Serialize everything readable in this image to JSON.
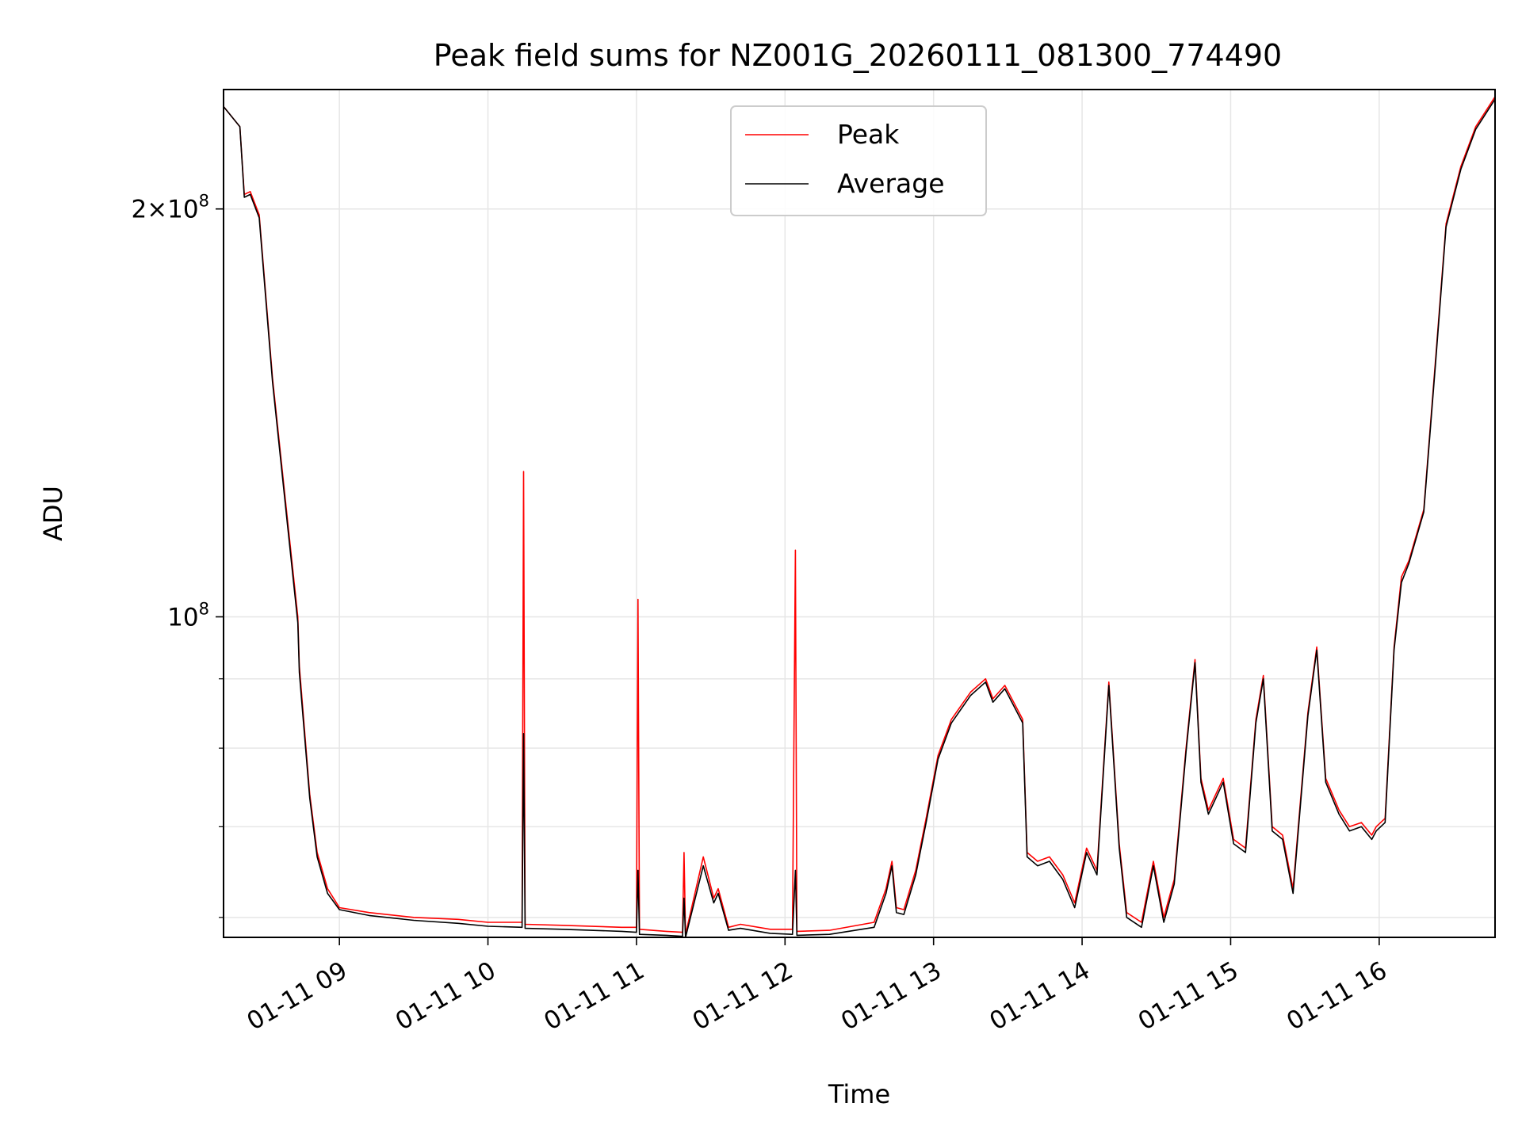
{
  "chart_data": {
    "type": "line",
    "title": "Peak field sums for NZ001G_20260111_081300_774490",
    "xlabel": "Time",
    "ylabel": "ADU",
    "yscale": "log",
    "ylim": [
      58000000,
      245000000
    ],
    "xlim": [
      8.22,
      16.78
    ],
    "grid": true,
    "legend_position": "top-center",
    "x_ticks": [
      {
        "value": 9,
        "label": "01-11 09"
      },
      {
        "value": 10,
        "label": "01-11 10"
      },
      {
        "value": 11,
        "label": "01-11 11"
      },
      {
        "value": 12,
        "label": "01-11 12"
      },
      {
        "value": 13,
        "label": "01-11 13"
      },
      {
        "value": 14,
        "label": "01-11 14"
      },
      {
        "value": 15,
        "label": "01-11 15"
      },
      {
        "value": 16,
        "label": "01-11 16"
      }
    ],
    "y_major_ticks": [
      {
        "value": 100000000,
        "base": "10",
        "exp": "8",
        "coef": ""
      },
      {
        "value": 200000000,
        "base": "10",
        "exp": "8",
        "coef": "2×"
      }
    ],
    "y_minor_ticks": [
      60000000,
      70000000,
      80000000,
      90000000
    ],
    "series": [
      {
        "name": "Peak",
        "color": "#ff0000",
        "x": [
          8.22,
          8.33,
          8.36,
          8.4,
          8.46,
          8.55,
          8.65,
          8.72,
          8.73,
          8.8,
          8.85,
          8.92,
          9.0,
          9.2,
          9.5,
          9.8,
          10.0,
          10.23,
          10.24,
          10.25,
          10.5,
          10.9,
          11.0,
          11.01,
          11.02,
          11.2,
          11.31,
          11.32,
          11.33,
          11.45,
          11.52,
          11.55,
          11.62,
          11.7,
          11.9,
          12.05,
          12.07,
          12.08,
          12.3,
          12.6,
          12.68,
          12.72,
          12.75,
          12.8,
          12.88,
          12.95,
          13.03,
          13.12,
          13.25,
          13.35,
          13.4,
          13.48,
          13.6,
          13.63,
          13.7,
          13.78,
          13.87,
          13.95,
          14.03,
          14.1,
          14.18,
          14.25,
          14.3,
          14.4,
          14.48,
          14.55,
          14.62,
          14.7,
          14.76,
          14.8,
          14.85,
          14.95,
          15.02,
          15.1,
          15.17,
          15.22,
          15.28,
          15.35,
          15.42,
          15.52,
          15.58,
          15.64,
          15.73,
          15.8,
          15.88,
          15.95,
          15.98,
          16.04,
          16.1,
          16.15,
          16.2,
          16.3,
          16.38,
          16.45,
          16.55,
          16.65,
          16.78
        ],
        "y": [
          238000000,
          230000000,
          205000000,
          206000000,
          198000000,
          150000000,
          118000000,
          100000000,
          92000000,
          74000000,
          67000000,
          63000000,
          61000000,
          60500000,
          60000000,
          59800000,
          59500000,
          59500000,
          128000000,
          59300000,
          59200000,
          59000000,
          59000000,
          103000000,
          58800000,
          58600000,
          58500000,
          67000000,
          58300000,
          66500000,
          62000000,
          63000000,
          59000000,
          59300000,
          58800000,
          58800000,
          112000000,
          58600000,
          58700000,
          59500000,
          63000000,
          66000000,
          61000000,
          60800000,
          65000000,
          71000000,
          79000000,
          84000000,
          88000000,
          90000000,
          87000000,
          89000000,
          84000000,
          67000000,
          66000000,
          66500000,
          64500000,
          61500000,
          67500000,
          65000000,
          89500000,
          68000000,
          60500000,
          59500000,
          66000000,
          60000000,
          64000000,
          80000000,
          93000000,
          76000000,
          72000000,
          76000000,
          68500000,
          67500000,
          84000000,
          90500000,
          70000000,
          69000000,
          63000000,
          85000000,
          95000000,
          76000000,
          72000000,
          70000000,
          70500000,
          69000000,
          70000000,
          71000000,
          95000000,
          107000000,
          110000000,
          120000000,
          155000000,
          195000000,
          215000000,
          230000000,
          242000000
        ]
      },
      {
        "name": "Average",
        "color": "#000000",
        "x": [
          8.22,
          8.33,
          8.36,
          8.4,
          8.46,
          8.55,
          8.65,
          8.72,
          8.73,
          8.8,
          8.85,
          8.92,
          9.0,
          9.2,
          9.5,
          9.8,
          10.0,
          10.23,
          10.24,
          10.25,
          10.5,
          10.9,
          11.0,
          11.01,
          11.02,
          11.2,
          11.31,
          11.32,
          11.33,
          11.45,
          11.52,
          11.55,
          11.62,
          11.7,
          11.9,
          12.05,
          12.07,
          12.08,
          12.3,
          12.6,
          12.68,
          12.72,
          12.75,
          12.8,
          12.88,
          12.95,
          13.03,
          13.12,
          13.25,
          13.35,
          13.4,
          13.48,
          13.6,
          13.63,
          13.7,
          13.78,
          13.87,
          13.95,
          14.03,
          14.1,
          14.18,
          14.25,
          14.3,
          14.4,
          14.48,
          14.55,
          14.62,
          14.7,
          14.76,
          14.8,
          14.85,
          14.95,
          15.02,
          15.1,
          15.17,
          15.22,
          15.28,
          15.35,
          15.42,
          15.52,
          15.58,
          15.64,
          15.73,
          15.8,
          15.88,
          15.95,
          15.98,
          16.04,
          16.1,
          16.15,
          16.2,
          16.3,
          16.38,
          16.45,
          16.55,
          16.65,
          16.78
        ],
        "y": [
          238000000,
          230000000,
          204000000,
          205000000,
          197000000,
          149000000,
          117000000,
          99000000,
          91000000,
          73500000,
          66500000,
          62500000,
          60800000,
          60200000,
          59700000,
          59400000,
          59100000,
          59000000,
          82000000,
          58900000,
          58800000,
          58600000,
          58500000,
          65000000,
          58300000,
          58200000,
          58100000,
          62000000,
          58000000,
          65500000,
          61500000,
          62500000,
          58700000,
          58900000,
          58400000,
          58300000,
          65000000,
          58200000,
          58300000,
          59000000,
          62500000,
          65500000,
          60500000,
          60300000,
          64500000,
          70500000,
          78500000,
          83500000,
          87500000,
          89500000,
          86500000,
          88500000,
          83500000,
          66500000,
          65500000,
          66000000,
          64000000,
          61000000,
          67000000,
          64500000,
          89000000,
          67500000,
          60000000,
          59000000,
          65500000,
          59500000,
          63500000,
          79500000,
          92500000,
          75500000,
          71500000,
          75500000,
          68000000,
          67000000,
          83500000,
          90000000,
          69500000,
          68500000,
          62500000,
          84500000,
          94500000,
          75500000,
          71500000,
          69500000,
          70000000,
          68500000,
          69500000,
          70500000,
          94500000,
          106000000,
          109500000,
          119500000,
          154000000,
          194000000,
          214000000,
          229000000,
          241000000
        ]
      }
    ]
  }
}
